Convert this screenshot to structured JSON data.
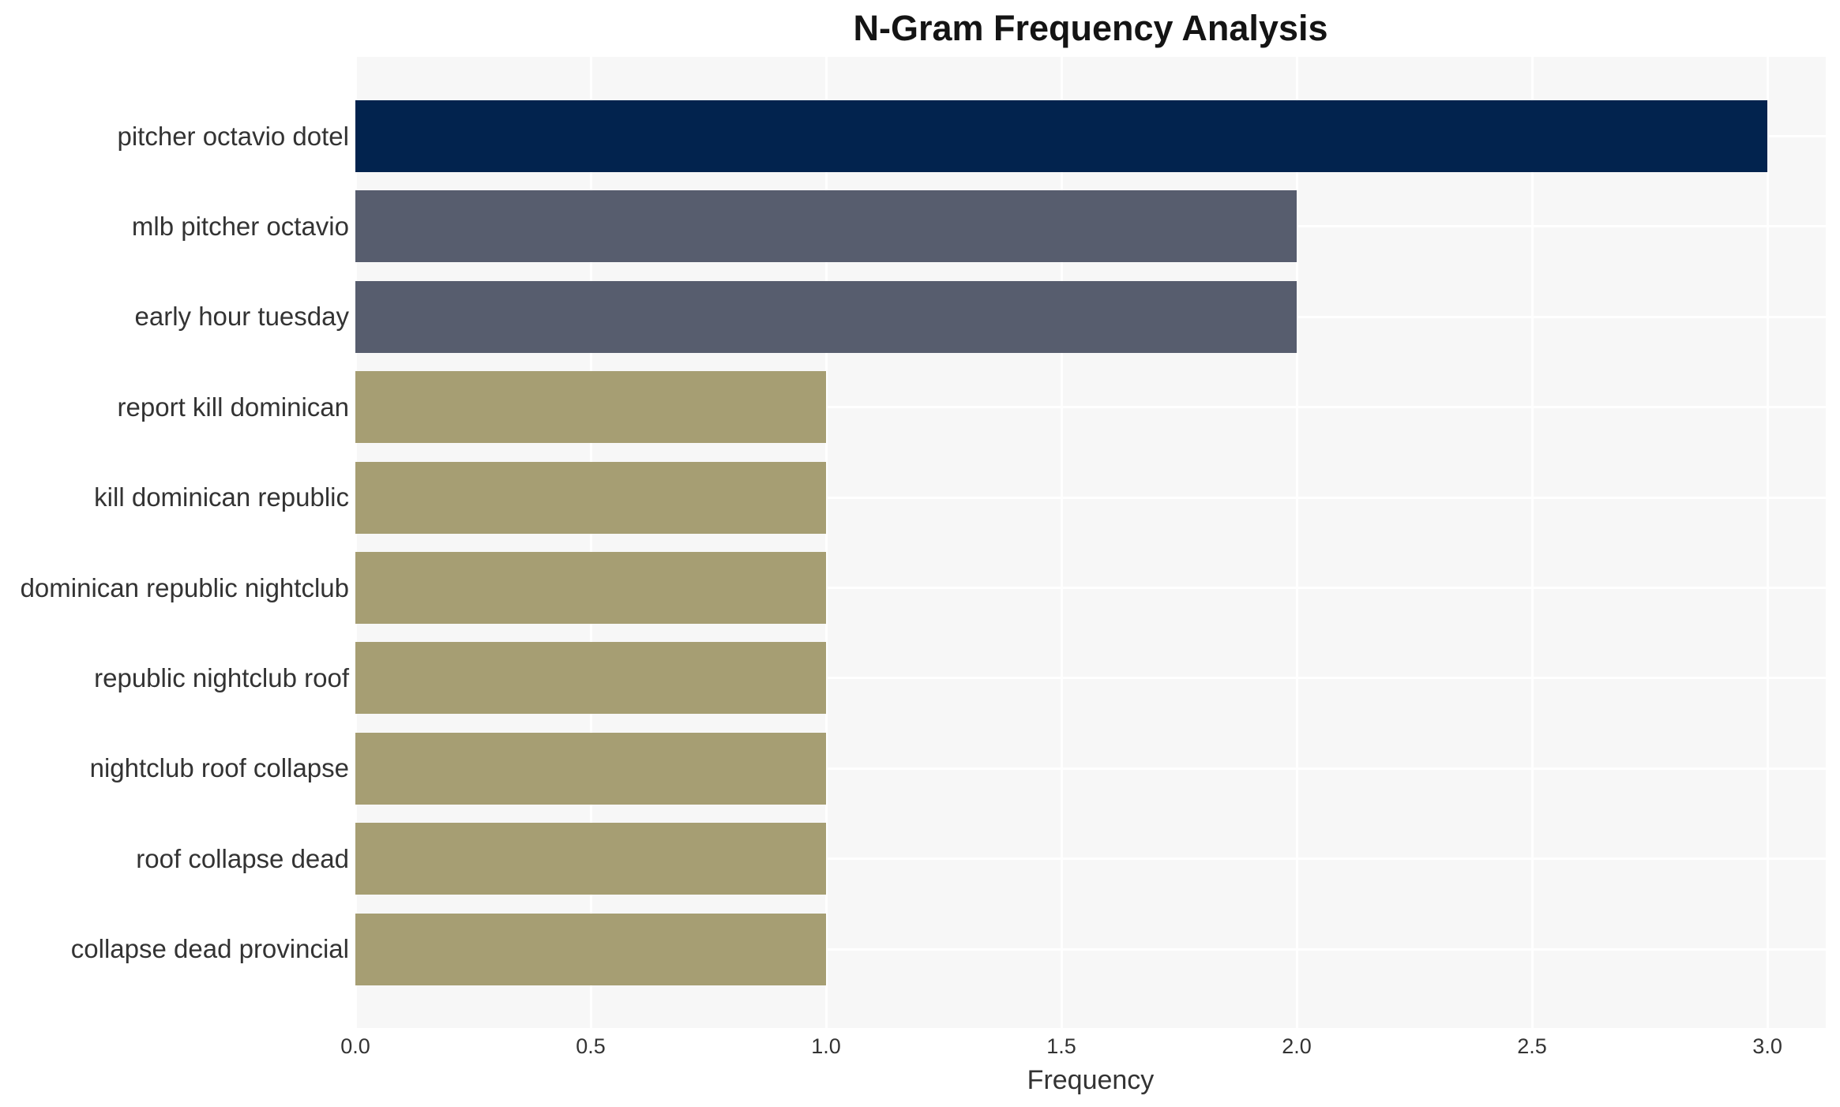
{
  "chart_data": {
    "type": "bar",
    "orientation": "horizontal",
    "title": "N-Gram Frequency Analysis",
    "xlabel": "Frequency",
    "ylabel": "",
    "categories": [
      "pitcher octavio dotel",
      "mlb pitcher octavio",
      "early hour tuesday",
      "report kill dominican",
      "kill dominican republic",
      "dominican republic nightclub",
      "republic nightclub roof",
      "nightclub roof collapse",
      "roof collapse dead",
      "collapse dead provincial"
    ],
    "values": [
      3,
      2,
      2,
      1,
      1,
      1,
      1,
      1,
      1,
      1
    ],
    "bar_colors": [
      "#02234e",
      "#575d6e",
      "#575d6e",
      "#a69e73",
      "#a69e73",
      "#a69e73",
      "#a69e73",
      "#a69e73",
      "#a69e73",
      "#a69e73"
    ],
    "x_tick_labels": [
      "0.0",
      "0.5",
      "1.0",
      "1.5",
      "2.0",
      "2.5",
      "3.0"
    ],
    "x_tick_values": [
      0,
      0.5,
      1.0,
      1.5,
      2.0,
      2.5,
      3.0
    ],
    "xlim": [
      0,
      3.124
    ],
    "grid": true,
    "legend": false,
    "colors": {
      "plot_background": "#f7f7f7",
      "page_background": "#ffffff",
      "gridline": "#ffffff",
      "tick_text": "#333333",
      "label_text": "#333333",
      "title_text": "#141414"
    }
  }
}
